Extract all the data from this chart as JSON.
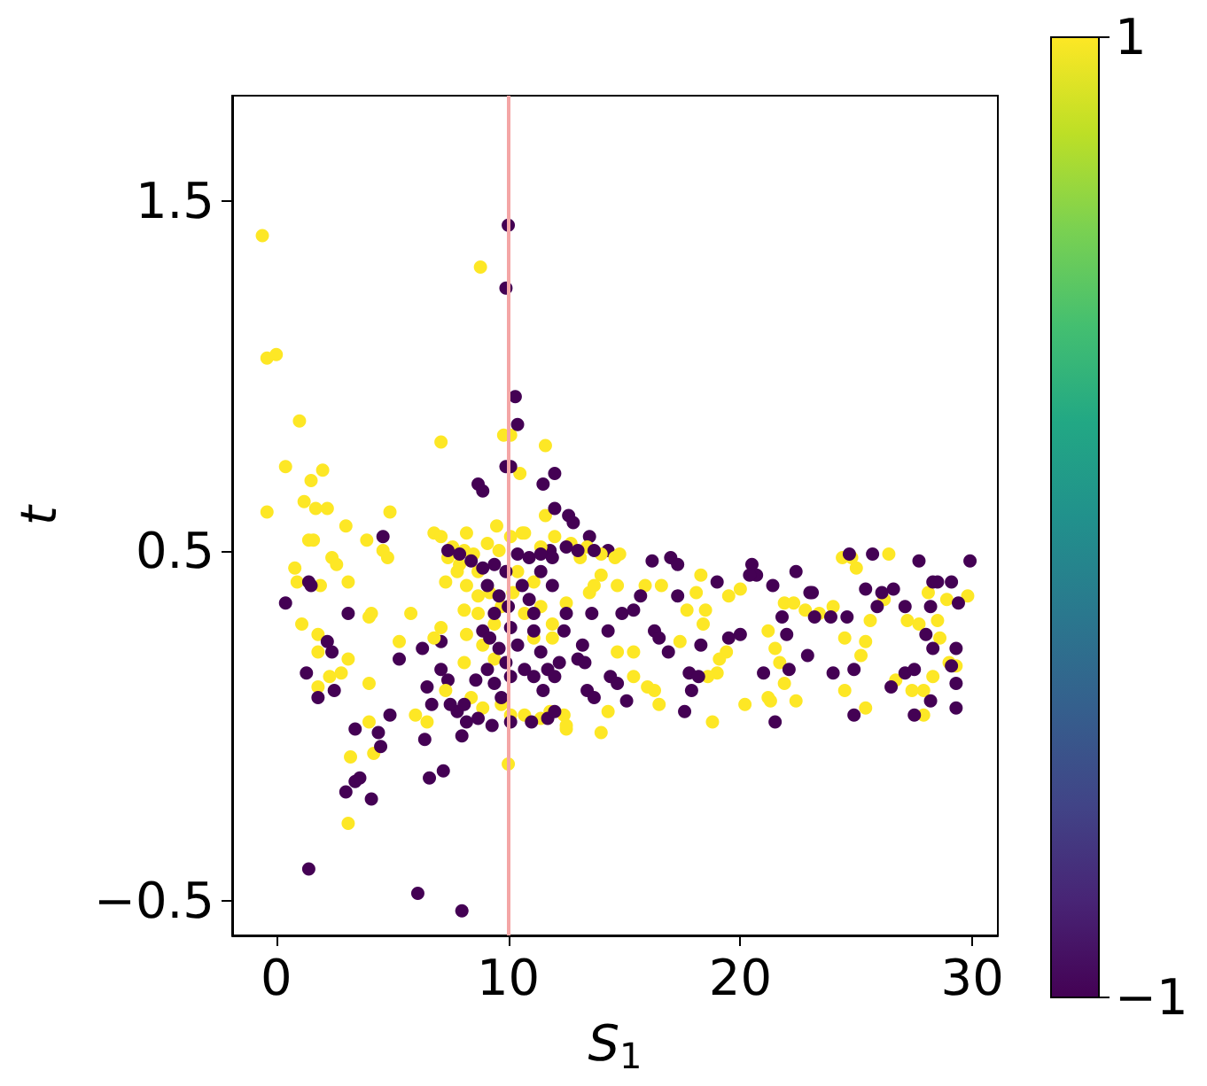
{
  "chart_data": {
    "type": "scatter",
    "xlabel": "S$_{1}$",
    "ylabel": "t",
    "x": [
      -0.6,
      -0.4,
      0.0,
      1.0,
      0.4,
      -0.4,
      1.5,
      2.0,
      1.2,
      1.7,
      2.2,
      3.0,
      1.4,
      1.6,
      4.9,
      3.9,
      4.6,
      4.8,
      0.8,
      0.9,
      2.4,
      2.6,
      1.9,
      3.1,
      1.1,
      1.8,
      1.8,
      4.0,
      4.1,
      3.1,
      2.3,
      2.8,
      1.8,
      4.0,
      5.3,
      4.0,
      3.2,
      4.2,
      3.1,
      6.0,
      6.5,
      5.8,
      7.1,
      8.8,
      9.8,
      10.1,
      10.5,
      11.6,
      11.6,
      10.6,
      9.5,
      8.2,
      6.8,
      10.0,
      14.0,
      12.5,
      0.4,
      1.4,
      1.5,
      2.2,
      2.4,
      1.3,
      1.8,
      2.5,
      3.1,
      4.6,
      3.4,
      4.4,
      4.5,
      4.9,
      3.0,
      3.4,
      3.6,
      4.1,
      1.4,
      6.1,
      8.0,
      6.6,
      7.2,
      6.4,
      5.3,
      6.3,
      7.1,
      6.5,
      6.7,
      7.4,
      7.1,
      8.0,
      7.8,
      10.0,
      9.9,
      10.3,
      10.4,
      9.9,
      10.1,
      8.7,
      8.9,
      11.5,
      12.0,
      12.0,
      12.6,
      12.8,
      13.5,
      14.3,
      11.8,
      7.1,
      7.6,
      8.1,
      8.5,
      9.1,
      9.6,
      10.1,
      10.7,
      11.4,
      12.0,
      12.7,
      13.4,
      14.0,
      14.6,
      7.3,
      7.8,
      8.2,
      8.7,
      9.2,
      9.7,
      8.1,
      8.7,
      9.4,
      10.2,
      10.7,
      11.4,
      11.9,
      12.5,
      13.5,
      11.1,
      11.9,
      8.2,
      8.9,
      9.4,
      8.1,
      7.1,
      6.8,
      7.3,
      8.4,
      8.9,
      9.7,
      10.7,
      11.4,
      11.8,
      12.4,
      12.5,
      10.1,
      11.1,
      10.4,
      8.7,
      7.9,
      7.4,
      13.1,
      14.0,
      13.7,
      14.8,
      7.4,
      7.9,
      8.4,
      8.9,
      9.4,
      9.9,
      10.4,
      10.9,
      11.4,
      11.9,
      12.5,
      13.0,
      13.7,
      9.1,
      9.6,
      10.0,
      10.6,
      10.9,
      11.1,
      9.4,
      8.9,
      9.2,
      9.6,
      9.9,
      10.1,
      9.1,
      9.4,
      8.6,
      8.1,
      8.7,
      9.3,
      10.1,
      11.0,
      11.7,
      12.0,
      11.4,
      11.7,
      12.2,
      12.0,
      11.1,
      11.5,
      10.7,
      10.4,
      11.1,
      12.4,
      13.2,
      13.0,
      12.5,
      11.9,
      11.4,
      10.1,
      8.2,
      7.5,
      9.7,
      24.4,
      24.8,
      26.4,
      25.0,
      29.8,
      28.9,
      28.1,
      27.2,
      27.7,
      28.5,
      28.6,
      25.6,
      24.5,
      25.4,
      25.2,
      23.4,
      22.8,
      21.9,
      22.3,
      20.0,
      19.5,
      18.3,
      18.1,
      17.7,
      18.5,
      16.6,
      15.9,
      14.7,
      18.4,
      19.4,
      19.1,
      19.0,
      18.6,
      21.2,
      21.5,
      21.7,
      21.2,
      21.3,
      20.2,
      22.4,
      24.5,
      25.4,
      27.9,
      27.9,
      27.4,
      29.0,
      29.3,
      28.3,
      26.7,
      21.9,
      18.8,
      16.3,
      16.0,
      16.5,
      15.4,
      15.4,
      14.7,
      14.3,
      17.4,
      24.0,
      26.2,
      16.2,
      17.0,
      17.3,
      20.5,
      22.4,
      24.7,
      25.7,
      27.7,
      29.9,
      29.1,
      28.3,
      28.5,
      26.6,
      26.1,
      25.4,
      23.0,
      21.4,
      20.7,
      20.4,
      19.0,
      17.3,
      15.7,
      14.9,
      15.4,
      13.6,
      14.3,
      16.3,
      16.5,
      16.9,
      18.3,
      19.5,
      20.0,
      22.0,
      21.8,
      23.2,
      23.9,
      24.6,
      25.9,
      27.1,
      28.2,
      29.4,
      29.3,
      28.0,
      28.3,
      29.1,
      29.3,
      29.3,
      28.2,
      27.5,
      27.1,
      27.5,
      26.5,
      24.9,
      24.0,
      22.9,
      22.1,
      21.5,
      21.0,
      17.8,
      18.2,
      17.6,
      17.9,
      15.1,
      14.4,
      14.7,
      13.4,
      13.7,
      13.3,
      24.9,
      23.1
    ],
    "values": [
      1.4,
      1.05,
      1.06,
      0.87,
      0.74,
      0.61,
      0.7,
      0.73,
      0.64,
      0.62,
      0.62,
      0.57,
      0.53,
      0.53,
      0.61,
      0.53,
      0.5,
      0.48,
      0.45,
      0.41,
      0.48,
      0.46,
      0.4,
      0.41,
      0.29,
      0.26,
      0.21,
      0.31,
      0.32,
      0.19,
      0.14,
      0.15,
      0.11,
      0.12,
      0.24,
      0.01,
      -0.09,
      -0.08,
      -0.28,
      0.03,
      0.01,
      0.32,
      0.81,
      1.31,
      0.83,
      0.83,
      0.72,
      0.8,
      0.6,
      0.55,
      0.57,
      0.55,
      0.55,
      -0.11,
      -0.02,
      -0.01,
      0.35,
      0.41,
      0.4,
      0.24,
      0.21,
      0.15,
      0.08,
      0.1,
      0.32,
      0.54,
      -0.01,
      -0.02,
      -0.06,
      0.03,
      -0.19,
      -0.16,
      -0.15,
      -0.21,
      -0.41,
      -0.48,
      -0.53,
      -0.15,
      -0.13,
      -0.04,
      0.19,
      0.22,
      0.24,
      0.11,
      0.06,
      0.13,
      0.16,
      -0.03,
      0.04,
      1.43,
      1.25,
      0.94,
      0.86,
      0.74,
      0.74,
      0.69,
      0.67,
      0.69,
      0.72,
      0.62,
      0.6,
      0.58,
      0.54,
      0.5,
      0.5,
      0.54,
      0.51,
      0.5,
      0.49,
      0.52,
      0.5,
      0.54,
      0.55,
      0.51,
      0.54,
      0.52,
      0.51,
      0.49,
      0.48,
      0.41,
      0.44,
      0.4,
      0.37,
      0.38,
      0.34,
      0.33,
      0.32,
      0.29,
      0.38,
      0.32,
      0.34,
      0.29,
      0.35,
      0.38,
      0.25,
      0.25,
      0.26,
      0.23,
      0.19,
      0.18,
      0.28,
      0.25,
      0.1,
      0.08,
      0.05,
      0.06,
      0.03,
      0.02,
      0.04,
      0.03,
      0.0,
      0.03,
      0.41,
      0.44,
      0.44,
      0.46,
      0.48,
      0.48,
      0.43,
      0.4,
      0.49,
      0.5,
      0.49,
      0.47,
      0.45,
      0.46,
      0.44,
      0.49,
      0.48,
      0.49,
      0.48,
      0.51,
      0.5,
      0.5,
      0.4,
      0.37,
      0.34,
      0.4,
      0.36,
      0.32,
      0.32,
      0.27,
      0.25,
      0.22,
      0.18,
      0.14,
      0.16,
      0.12,
      0.13,
      0.06,
      0.02,
      0.0,
      0.01,
      0.01,
      0.02,
      0.04,
      0.21,
      0.16,
      0.18,
      0.14,
      0.14,
      0.1,
      0.16,
      0.23,
      0.27,
      0.27,
      0.23,
      0.19,
      0.32,
      0.4,
      0.44,
      0.28,
      0.01,
      0.06,
      0.08,
      0.48,
      0.48,
      0.49,
      0.45,
      0.37,
      0.36,
      0.38,
      0.3,
      0.29,
      0.3,
      0.25,
      0.3,
      0.25,
      0.24,
      0.2,
      0.32,
      0.33,
      0.35,
      0.35,
      0.39,
      0.37,
      0.43,
      0.38,
      0.33,
      0.33,
      0.4,
      0.4,
      0.4,
      0.29,
      0.21,
      0.19,
      0.15,
      0.14,
      0.27,
      0.22,
      0.18,
      0.08,
      0.07,
      0.06,
      0.07,
      0.1,
      0.05,
      0.1,
      0.03,
      0.1,
      0.18,
      0.17,
      0.14,
      0.13,
      0.12,
      0.01,
      0.1,
      0.11,
      0.06,
      0.21,
      0.14,
      0.21,
      0.04,
      0.24,
      0.34,
      0.36,
      0.47,
      0.48,
      0.46,
      0.46,
      0.44,
      0.49,
      0.49,
      0.47,
      0.47,
      0.41,
      0.41,
      0.41,
      0.39,
      0.38,
      0.39,
      0.38,
      0.4,
      0.43,
      0.43,
      0.41,
      0.37,
      0.37,
      0.32,
      0.33,
      0.32,
      0.27,
      0.27,
      0.25,
      0.21,
      0.23,
      0.25,
      0.26,
      0.26,
      0.31,
      0.31,
      0.31,
      0.31,
      0.34,
      0.34,
      0.34,
      0.35,
      0.22,
      0.26,
      0.22,
      0.17,
      0.12,
      0.05,
      0.07,
      0.03,
      0.15,
      0.16,
      0.11,
      0.16,
      0.15,
      0.2,
      0.16,
      0.01,
      0.15,
      0.15,
      0.14,
      0.04,
      0.1,
      0.07,
      0.14,
      0.12,
      0.1,
      0.08,
      0.18,
      0.03,
      0.38
    ],
    "cvalues": [
      1,
      1,
      1,
      1,
      1,
      1,
      1,
      1,
      1,
      1,
      1,
      1,
      1,
      1,
      1,
      1,
      1,
      1,
      1,
      1,
      1,
      1,
      1,
      1,
      1,
      1,
      1,
      1,
      1,
      1,
      1,
      1,
      1,
      1,
      1,
      1,
      1,
      1,
      1,
      1,
      1,
      1,
      1,
      1,
      1,
      1,
      1,
      1,
      1,
      1,
      1,
      1,
      1,
      1,
      1,
      1,
      -1,
      -1,
      -1,
      -1,
      -1,
      -1,
      -1,
      -1,
      -1,
      -1,
      -1,
      -1,
      -1,
      -1,
      -1,
      -1,
      -1,
      -1,
      -1,
      -1,
      -1,
      -1,
      -1,
      -1,
      -1,
      -1,
      -1,
      -1,
      -1,
      -1,
      -1,
      -1,
      -1,
      -1,
      -1,
      -1,
      -1,
      -1,
      -1,
      -1,
      -1,
      -1,
      -1,
      -1,
      -1,
      -1,
      -1,
      -1,
      -1,
      1,
      1,
      1,
      1,
      1,
      1,
      1,
      1,
      1,
      1,
      1,
      1,
      1,
      1,
      1,
      1,
      1,
      1,
      1,
      1,
      1,
      1,
      1,
      1,
      1,
      1,
      1,
      1,
      1,
      1,
      1,
      1,
      1,
      1,
      1,
      1,
      1,
      1,
      1,
      1,
      1,
      1,
      1,
      1,
      1,
      1,
      1,
      1,
      1,
      1,
      1,
      1,
      1,
      1,
      1,
      1,
      -1,
      -1,
      -1,
      -1,
      -1,
      -1,
      -1,
      -1,
      -1,
      -1,
      -1,
      -1,
      -1,
      -1,
      -1,
      -1,
      -1,
      -1,
      -1,
      -1,
      -1,
      -1,
      -1,
      -1,
      -1,
      -1,
      -1,
      -1,
      -1,
      -1,
      -1,
      -1,
      -1,
      -1,
      -1,
      -1,
      -1,
      -1,
      -1,
      -1,
      -1,
      -1,
      -1,
      -1,
      -1,
      -1,
      -1,
      -1,
      -1,
      -1,
      -1,
      -1,
      -1,
      -1,
      1,
      1,
      1,
      1,
      1,
      1,
      1,
      1,
      1,
      1,
      1,
      1,
      1,
      1,
      1,
      1,
      1,
      1,
      1,
      1,
      1,
      1,
      1,
      1,
      1,
      1,
      1,
      1,
      1,
      1,
      1,
      1,
      1,
      1,
      1,
      1,
      1,
      1,
      1,
      1,
      1,
      1,
      1,
      1,
      1,
      1,
      1,
      1,
      1,
      1,
      1,
      1,
      1,
      1,
      1,
      1,
      1,
      1,
      1,
      1,
      1,
      -1,
      -1,
      -1,
      -1,
      -1,
      -1,
      -1,
      -1,
      -1,
      -1,
      -1,
      -1,
      -1,
      -1,
      -1,
      -1,
      -1,
      -1,
      -1,
      -1,
      -1,
      -1,
      -1,
      -1,
      -1,
      -1,
      -1,
      -1,
      -1,
      -1,
      -1,
      -1,
      -1,
      -1,
      -1,
      -1,
      -1,
      -1,
      -1,
      -1,
      -1,
      -1,
      -1,
      -1,
      -1,
      -1,
      -1,
      -1,
      -1,
      -1,
      -1,
      -1,
      -1,
      -1,
      -1,
      -1,
      -1,
      -1,
      -1,
      -1,
      -1,
      -1,
      -1,
      -1,
      -1,
      -1,
      -1,
      -1,
      -1,
      -1
    ],
    "clim": [
      -1,
      1
    ],
    "cticks": [
      -1,
      1
    ],
    "xlim": [
      -1.9,
      31.1
    ],
    "ylim": [
      -0.6,
      1.8
    ],
    "xticks": [
      0,
      10,
      20,
      30
    ],
    "yticks": [
      -0.5,
      0.5,
      1.5
    ],
    "ref_lines": [
      {
        "axis": "x",
        "value": 10,
        "color": "#f4a6a6"
      }
    ],
    "grid": false,
    "marker": "circle"
  }
}
